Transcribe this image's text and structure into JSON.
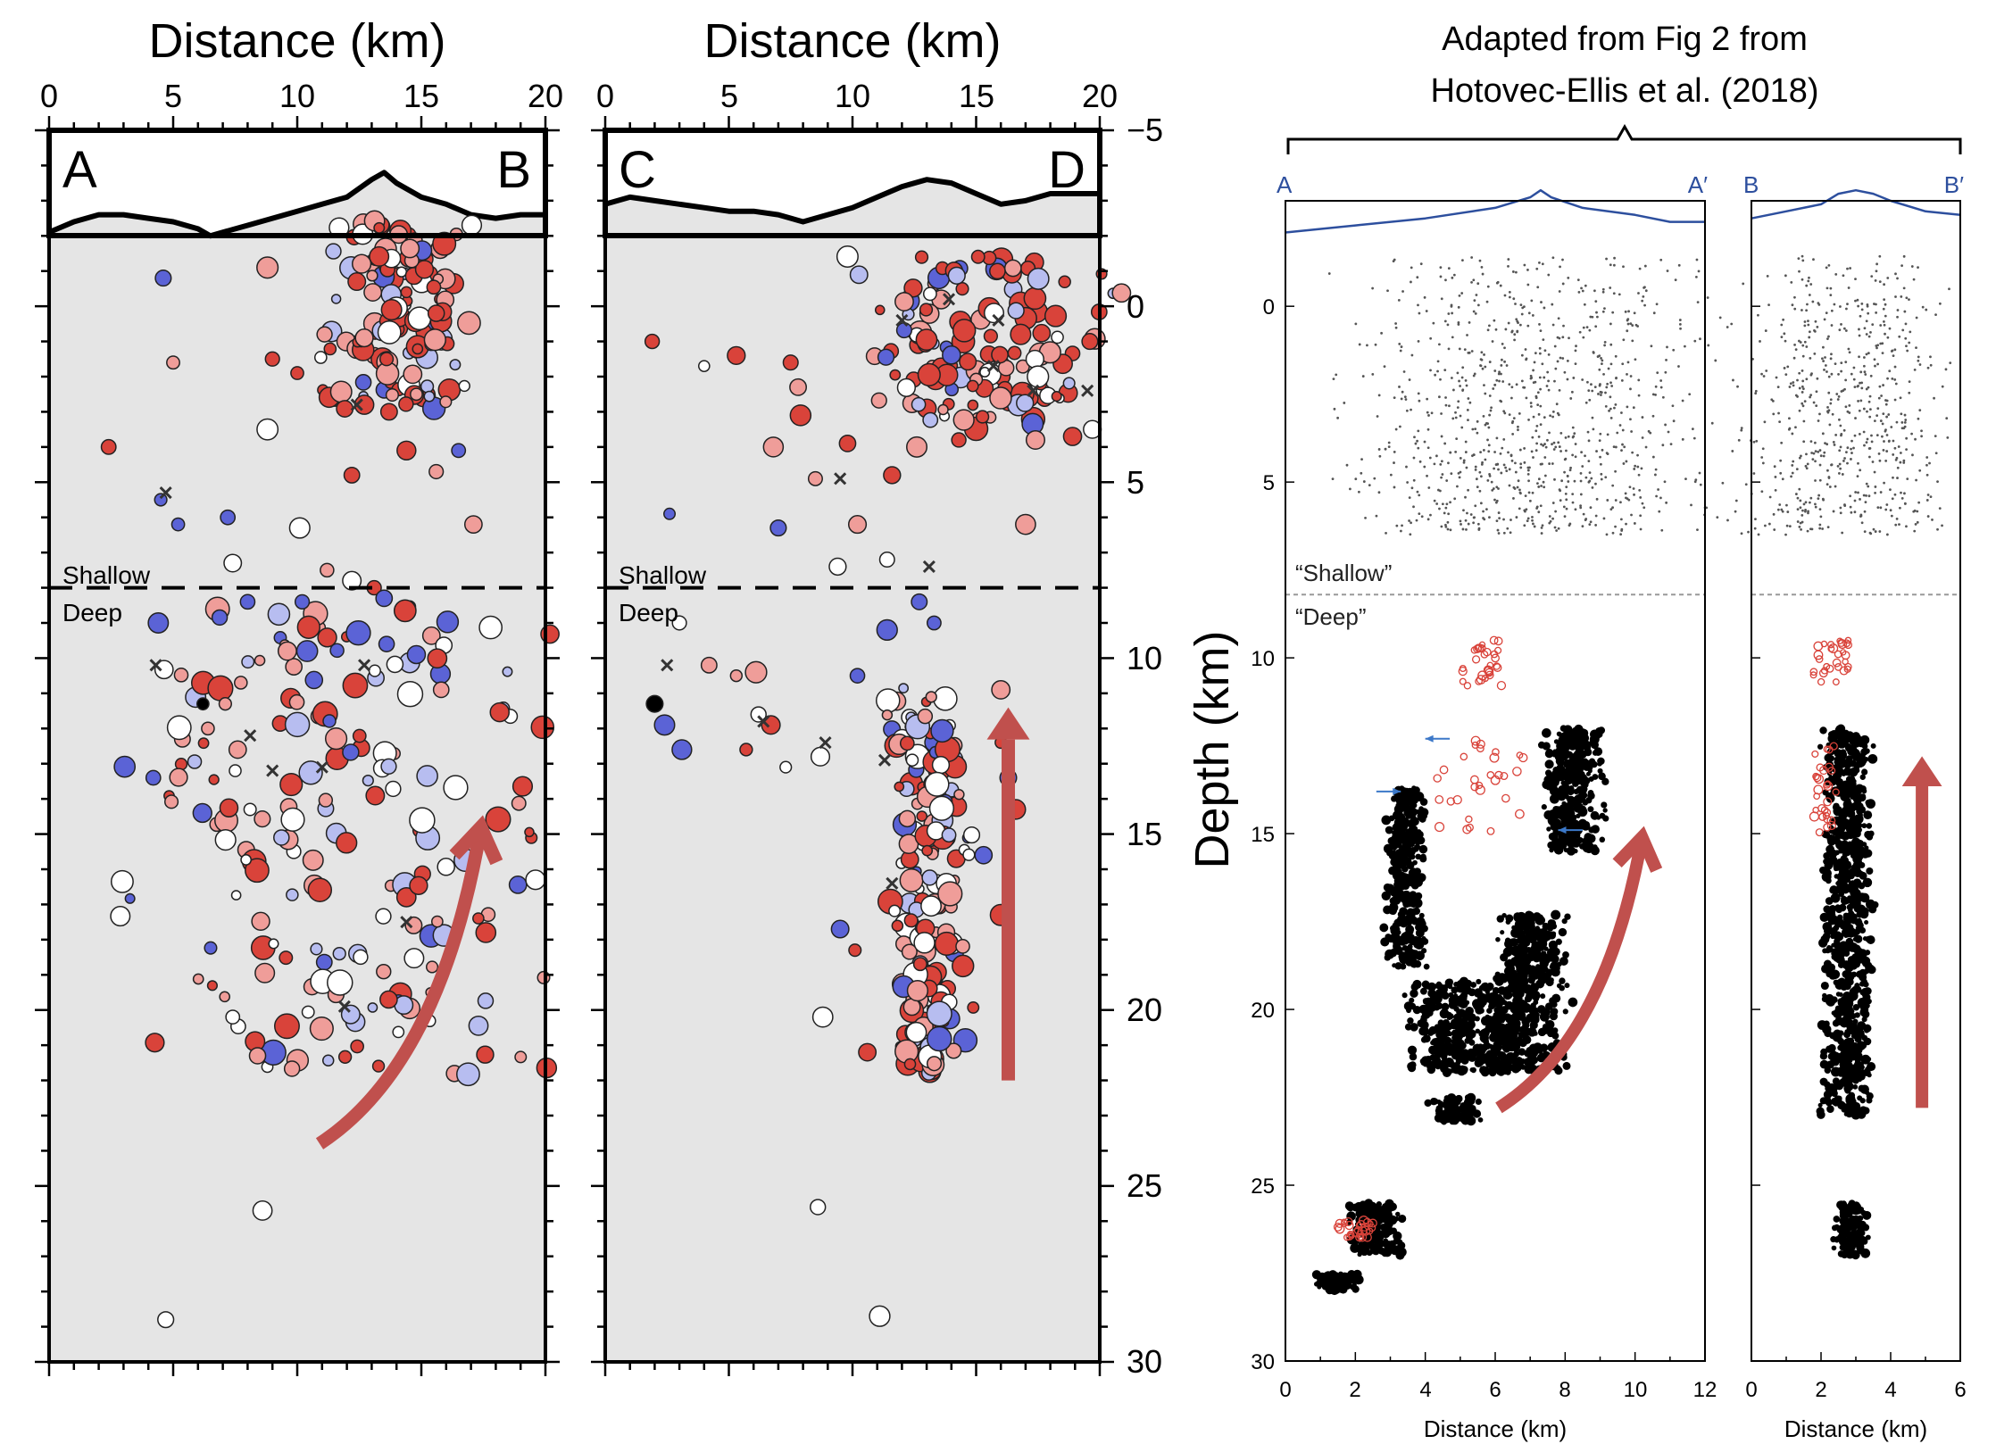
{
  "colors": {
    "panel_bg": "#e5e5e5",
    "topo": "#000000",
    "topo_blue": "#2d4f9e",
    "arrow": "#c0504d",
    "red_dot": "#d9433a",
    "pink_dot": "#ef9d99",
    "white_dot": "#ffffff",
    "lightblue_dot": "#b7bdf0",
    "blue_dot": "#5b63d6",
    "black_dot": "#000000",
    "grey_dot": "#555555"
  },
  "figure": {
    "source_caption_line1": "Adapted from Fig 2 from",
    "source_caption_line2": "Hotovec-Ellis et al. (2018)"
  },
  "chart_data": [
    {
      "type": "scatter",
      "panel": "A-B",
      "xlabel": "Distance (km)",
      "xlim": [
        0,
        20
      ],
      "ylim": [
        30,
        -5
      ],
      "xticks": [
        "0",
        "5",
        "10",
        "15",
        "20"
      ],
      "corner_labels": [
        "A",
        "B"
      ],
      "divider_depth_km": 8,
      "zone_labels": [
        "Shallow",
        "Deep"
      ],
      "topography": [
        [
          0,
          -2.1
        ],
        [
          1,
          -2.4
        ],
        [
          2,
          -2.6
        ],
        [
          3,
          -2.6
        ],
        [
          4,
          -2.5
        ],
        [
          5,
          -2.4
        ],
        [
          6,
          -2.2
        ],
        [
          6.5,
          -2.0
        ],
        [
          7,
          -2.1
        ],
        [
          8,
          -2.3
        ],
        [
          9,
          -2.5
        ],
        [
          10,
          -2.7
        ],
        [
          11,
          -2.9
        ],
        [
          12,
          -3.1
        ],
        [
          13,
          -3.6
        ],
        [
          13.5,
          -3.8
        ],
        [
          14,
          -3.5
        ],
        [
          15,
          -3.1
        ],
        [
          16,
          -2.9
        ],
        [
          17,
          -2.6
        ],
        [
          18,
          -2.5
        ],
        [
          19,
          -2.6
        ],
        [
          20,
          -2.6
        ]
      ],
      "arrow": {
        "type": "curved",
        "start": [
          10.9,
          23.8
        ],
        "end": [
          17.4,
          14.8
        ]
      },
      "deep_cluster": {
        "region": [
          4,
          18.5,
          8.5,
          22
        ],
        "count": 180
      },
      "shallow_cluster": {
        "region": [
          11.5,
          16.5,
          -2.5,
          3
        ],
        "count": 130
      },
      "points": [
        [
          2.4,
          4,
          "red"
        ],
        [
          4.6,
          -0.8,
          "blue"
        ],
        [
          5.0,
          1.6,
          "pink"
        ],
        [
          4.5,
          5.5,
          "blue"
        ],
        [
          5.2,
          6.2,
          "blue"
        ],
        [
          7.2,
          6.0,
          "blue"
        ],
        [
          7.4,
          7.3,
          "white"
        ],
        [
          8.8,
          -1.1,
          "pink"
        ],
        [
          9.0,
          1.5,
          "red"
        ],
        [
          10.0,
          1.9,
          "red"
        ],
        [
          8.8,
          3.5,
          "white"
        ],
        [
          10.1,
          6.3,
          "white"
        ],
        [
          11.2,
          7.5,
          "pink"
        ],
        [
          12.2,
          4.8,
          "red"
        ],
        [
          14.4,
          4.1,
          "red"
        ],
        [
          15.6,
          4.7,
          "pink"
        ],
        [
          16.5,
          4.1,
          "blue"
        ],
        [
          17.1,
          6.2,
          "pink"
        ],
        [
          12.4,
          -0.7,
          "red"
        ],
        [
          13.8,
          0.1,
          "red"
        ],
        [
          14.4,
          -0.4,
          "red"
        ],
        [
          15.6,
          0.2,
          "red"
        ],
        [
          12.7,
          0.9,
          "pink"
        ],
        [
          13.6,
          1.5,
          "red"
        ],
        [
          14.8,
          2.5,
          "pink"
        ],
        [
          12.7,
          2.8,
          "red"
        ],
        [
          13.7,
          3.0,
          "red"
        ],
        [
          11.1,
          0.8,
          "pink"
        ],
        [
          12.2,
          7.8,
          "white"
        ],
        [
          13.1,
          8.0,
          "red"
        ],
        [
          8.0,
          8.4,
          "blue"
        ],
        [
          10.2,
          8.4,
          "blue"
        ],
        [
          13.5,
          8.3,
          "blue"
        ],
        [
          4.4,
          9.0,
          "blue"
        ],
        [
          6.2,
          11.3,
          "black"
        ],
        [
          6.4,
          12.0,
          "pink"
        ],
        [
          7.1,
          11.3,
          "pink"
        ],
        [
          7.6,
          12.6,
          "pink"
        ],
        [
          4.2,
          13.4,
          "blue"
        ],
        [
          7.5,
          13.2,
          "white"
        ],
        [
          8.1,
          14.3,
          "white"
        ],
        [
          9.6,
          9.8,
          "pink"
        ],
        [
          10.4,
          9.8,
          "blue"
        ],
        [
          13.6,
          9.6,
          "blue"
        ],
        [
          14.8,
          9.9,
          "blue"
        ],
        [
          15.8,
          10.9,
          "pink"
        ],
        [
          17.6,
          17.8,
          "red"
        ],
        [
          19.6,
          16.3,
          "white"
        ],
        [
          7.4,
          20.2,
          "white"
        ],
        [
          8.4,
          21.3,
          "pink"
        ],
        [
          8.6,
          25.7,
          "white"
        ],
        [
          4.7,
          28.8,
          "white"
        ]
      ],
      "crosses": [
        [
          4.3,
          10.2
        ],
        [
          4.7,
          5.3
        ],
        [
          9.0,
          13.2
        ],
        [
          8.1,
          12.2
        ],
        [
          11.9,
          19.9
        ],
        [
          14.4,
          17.5
        ],
        [
          12.7,
          10.2
        ],
        [
          11.0,
          13.1
        ],
        [
          12.4,
          2.8
        ]
      ]
    },
    {
      "type": "scatter",
      "panel": "C-D",
      "xlabel": "Distance (km)",
      "ylabel": "Depth (km)",
      "xlim": [
        0,
        20
      ],
      "ylim": [
        30,
        -5
      ],
      "xticks": [
        "0",
        "5",
        "10",
        "15",
        "20"
      ],
      "yticks": [
        "−5",
        "0",
        "5",
        "10",
        "15",
        "20",
        "25",
        "30"
      ],
      "corner_labels": [
        "C",
        "D"
      ],
      "divider_depth_km": 8,
      "zone_labels": [
        "Shallow",
        "Deep"
      ],
      "topography": [
        [
          0,
          -2.9
        ],
        [
          1,
          -3.1
        ],
        [
          2,
          -3.0
        ],
        [
          3,
          -2.9
        ],
        [
          4,
          -2.8
        ],
        [
          5,
          -2.7
        ],
        [
          6,
          -2.7
        ],
        [
          7,
          -2.6
        ],
        [
          8,
          -2.4
        ],
        [
          9,
          -2.6
        ],
        [
          10,
          -2.8
        ],
        [
          11,
          -3.1
        ],
        [
          12,
          -3.4
        ],
        [
          13,
          -3.6
        ],
        [
          14,
          -3.5
        ],
        [
          15,
          -3.2
        ],
        [
          16,
          -2.9
        ],
        [
          17,
          -3.0
        ],
        [
          18,
          -3.2
        ],
        [
          19,
          -3.2
        ],
        [
          20,
          -3.2
        ]
      ],
      "arrow": {
        "type": "straight",
        "start": [
          16.3,
          22.0
        ],
        "end": [
          16.3,
          11.4
        ]
      },
      "deep_cluster": {
        "region": [
          11.5,
          14.5,
          10.5,
          21.8
        ],
        "count": 170
      },
      "shallow_cluster": {
        "region": [
          11,
          19.5,
          -1.5,
          3.5
        ],
        "count": 130
      },
      "points": [
        [
          1.9,
          1.0,
          "red"
        ],
        [
          5.3,
          1.4,
          "red"
        ],
        [
          7.5,
          1.6,
          "red"
        ],
        [
          7.8,
          2.3,
          "pink"
        ],
        [
          2.6,
          5.9,
          "blue"
        ],
        [
          4.0,
          1.7,
          "white"
        ],
        [
          6.8,
          4.0,
          "pink"
        ],
        [
          7.9,
          3.1,
          "red"
        ],
        [
          9.8,
          3.9,
          "red"
        ],
        [
          11.6,
          4.8,
          "red"
        ],
        [
          12.6,
          4.0,
          "pink"
        ],
        [
          10.2,
          6.2,
          "pink"
        ],
        [
          7.0,
          6.3,
          "blue"
        ],
        [
          9.4,
          7.4,
          "white"
        ],
        [
          11.4,
          7.2,
          "white"
        ],
        [
          8.5,
          4.9,
          "pink"
        ],
        [
          17.0,
          6.2,
          "pink"
        ],
        [
          18.9,
          3.7,
          "red"
        ],
        [
          19.7,
          3.5,
          "white"
        ],
        [
          19.6,
          1.0,
          "red"
        ],
        [
          17.5,
          2.0,
          "white"
        ],
        [
          16.8,
          0.8,
          "red"
        ],
        [
          17.4,
          3.8,
          "pink"
        ],
        [
          14.3,
          3.8,
          "red"
        ],
        [
          2.0,
          11.3,
          "black"
        ],
        [
          2.4,
          11.9,
          "blue"
        ],
        [
          3.1,
          12.6,
          "blue"
        ],
        [
          4.2,
          10.2,
          "pink"
        ],
        [
          5.3,
          10.5,
          "pink"
        ],
        [
          6.1,
          10.4,
          "pink"
        ],
        [
          3.0,
          9.0,
          "white"
        ],
        [
          5.7,
          12.6,
          "red"
        ],
        [
          6.2,
          11.6,
          "white"
        ],
        [
          6.7,
          11.9,
          "red"
        ],
        [
          7.3,
          13.1,
          "white"
        ],
        [
          8.7,
          12.8,
          "white"
        ],
        [
          10.2,
          10.5,
          "blue"
        ],
        [
          11.4,
          9.2,
          "blue"
        ],
        [
          12.7,
          8.4,
          "blue"
        ],
        [
          13.3,
          9.0,
          "blue"
        ],
        [
          16.0,
          10.9,
          "pink"
        ],
        [
          16.3,
          13.4,
          "blue"
        ],
        [
          16.6,
          14.3,
          "red"
        ],
        [
          16.0,
          17.3,
          "red"
        ],
        [
          15.3,
          15.6,
          "blue"
        ],
        [
          9.5,
          17.7,
          "blue"
        ],
        [
          10.1,
          18.3,
          "red"
        ],
        [
          8.8,
          20.2,
          "white"
        ],
        [
          10.6,
          21.2,
          "red"
        ],
        [
          8.6,
          25.6,
          "white"
        ],
        [
          11.1,
          28.7,
          "white"
        ],
        [
          16.0,
          12.4,
          "red"
        ]
      ],
      "crosses": [
        [
          2.5,
          10.2
        ],
        [
          6.4,
          11.8
        ],
        [
          8.9,
          12.4
        ],
        [
          11.3,
          12.9
        ],
        [
          11.6,
          16.4
        ],
        [
          13.1,
          7.4
        ],
        [
          15.7,
          1.7
        ],
        [
          17.3,
          2.4
        ],
        [
          19.5,
          2.4
        ],
        [
          15.9,
          0.4
        ],
        [
          13.9,
          -0.2
        ],
        [
          12.0,
          0.4
        ],
        [
          9.5,
          4.9
        ]
      ]
    },
    {
      "type": "scatter",
      "panel": "A-A'",
      "xlabel": "Distance (km)",
      "ylabel": "",
      "xlim": [
        0,
        12
      ],
      "ylim": [
        30,
        -3
      ],
      "xticks": [
        "0",
        "2",
        "4",
        "6",
        "8",
        "10",
        "12"
      ],
      "yticks": [
        "0",
        "5",
        "10",
        "15",
        "20",
        "25",
        "30"
      ],
      "corner_labels": [
        "A",
        "A′"
      ],
      "divider_depth_km": 8.2,
      "zone_labels": [
        "“Shallow”",
        "“Deep”"
      ],
      "topography": [
        [
          0,
          -2.1
        ],
        [
          2,
          -2.3
        ],
        [
          4,
          -2.5
        ],
        [
          6,
          -2.8
        ],
        [
          7,
          -3.1
        ],
        [
          7.3,
          -3.3
        ],
        [
          7.6,
          -3.1
        ],
        [
          8.5,
          -2.8
        ],
        [
          10,
          -2.6
        ],
        [
          11,
          -2.4
        ],
        [
          12,
          -2.4
        ]
      ],
      "arrow": {
        "type": "curved",
        "start": [
          6.1,
          22.8
        ],
        "end": [
          10.2,
          15.1
        ]
      },
      "blue_arrows": [
        [
          [
            4.7,
            12.3
          ],
          [
            4.0,
            12.3
          ]
        ],
        [
          [
            8.5,
            14.9
          ],
          [
            7.8,
            14.9
          ]
        ],
        [
          [
            2.6,
            13.8
          ],
          [
            3.3,
            13.8
          ]
        ]
      ],
      "grey_cluster": {
        "region": [
          3,
          11,
          -1.5,
          6.5
        ],
        "count": 900
      },
      "black_clusters": [
        [
          3.0,
          3.9,
          13.7,
          18.8
        ],
        [
          4.0,
          7.5,
          19.2,
          21.8
        ],
        [
          6.3,
          7.8,
          17.3,
          19.2
        ],
        [
          7.6,
          8.9,
          12.0,
          15.5
        ],
        [
          4.3,
          5.4,
          22.5,
          23.2
        ],
        [
          2.0,
          3.2,
          25.5,
          27.0
        ],
        [
          1.0,
          2.0,
          27.5,
          28.0
        ]
      ],
      "red_open_clusters": [
        [
          5.0,
          6.2,
          9.5,
          10.8
        ],
        [
          4.2,
          6.8,
          12.3,
          15.0
        ],
        [
          1.5,
          2.5,
          26.0,
          26.5
        ]
      ]
    },
    {
      "type": "scatter",
      "panel": "B-B'",
      "xlabel": "Distance (km)",
      "ylabel": "",
      "xlim": [
        0,
        6
      ],
      "ylim": [
        30,
        -3
      ],
      "xticks": [
        "0",
        "2",
        "4",
        "6"
      ],
      "corner_labels": [
        "B",
        "B′"
      ],
      "divider_depth_km": 8.2,
      "topography": [
        [
          0,
          -2.5
        ],
        [
          1,
          -2.7
        ],
        [
          2,
          -2.9
        ],
        [
          2.5,
          -3.2
        ],
        [
          3,
          -3.3
        ],
        [
          3.5,
          -3.2
        ],
        [
          4,
          -3.0
        ],
        [
          5,
          -2.7
        ],
        [
          6,
          -2.6
        ]
      ],
      "arrow": {
        "type": "straight",
        "start": [
          4.9,
          22.8
        ],
        "end": [
          4.9,
          12.8
        ]
      },
      "grey_cluster": {
        "region": [
          0.5,
          5,
          -1.5,
          6.5
        ],
        "count": 600
      },
      "black_clusters": [
        [
          2.2,
          3.3,
          12.0,
          23.0
        ],
        [
          2.5,
          3.2,
          25.5,
          27.0
        ]
      ],
      "red_open_clusters": [
        [
          1.7,
          2.8,
          9.5,
          10.8
        ],
        [
          1.8,
          2.5,
          12.5,
          15.0
        ]
      ]
    }
  ]
}
